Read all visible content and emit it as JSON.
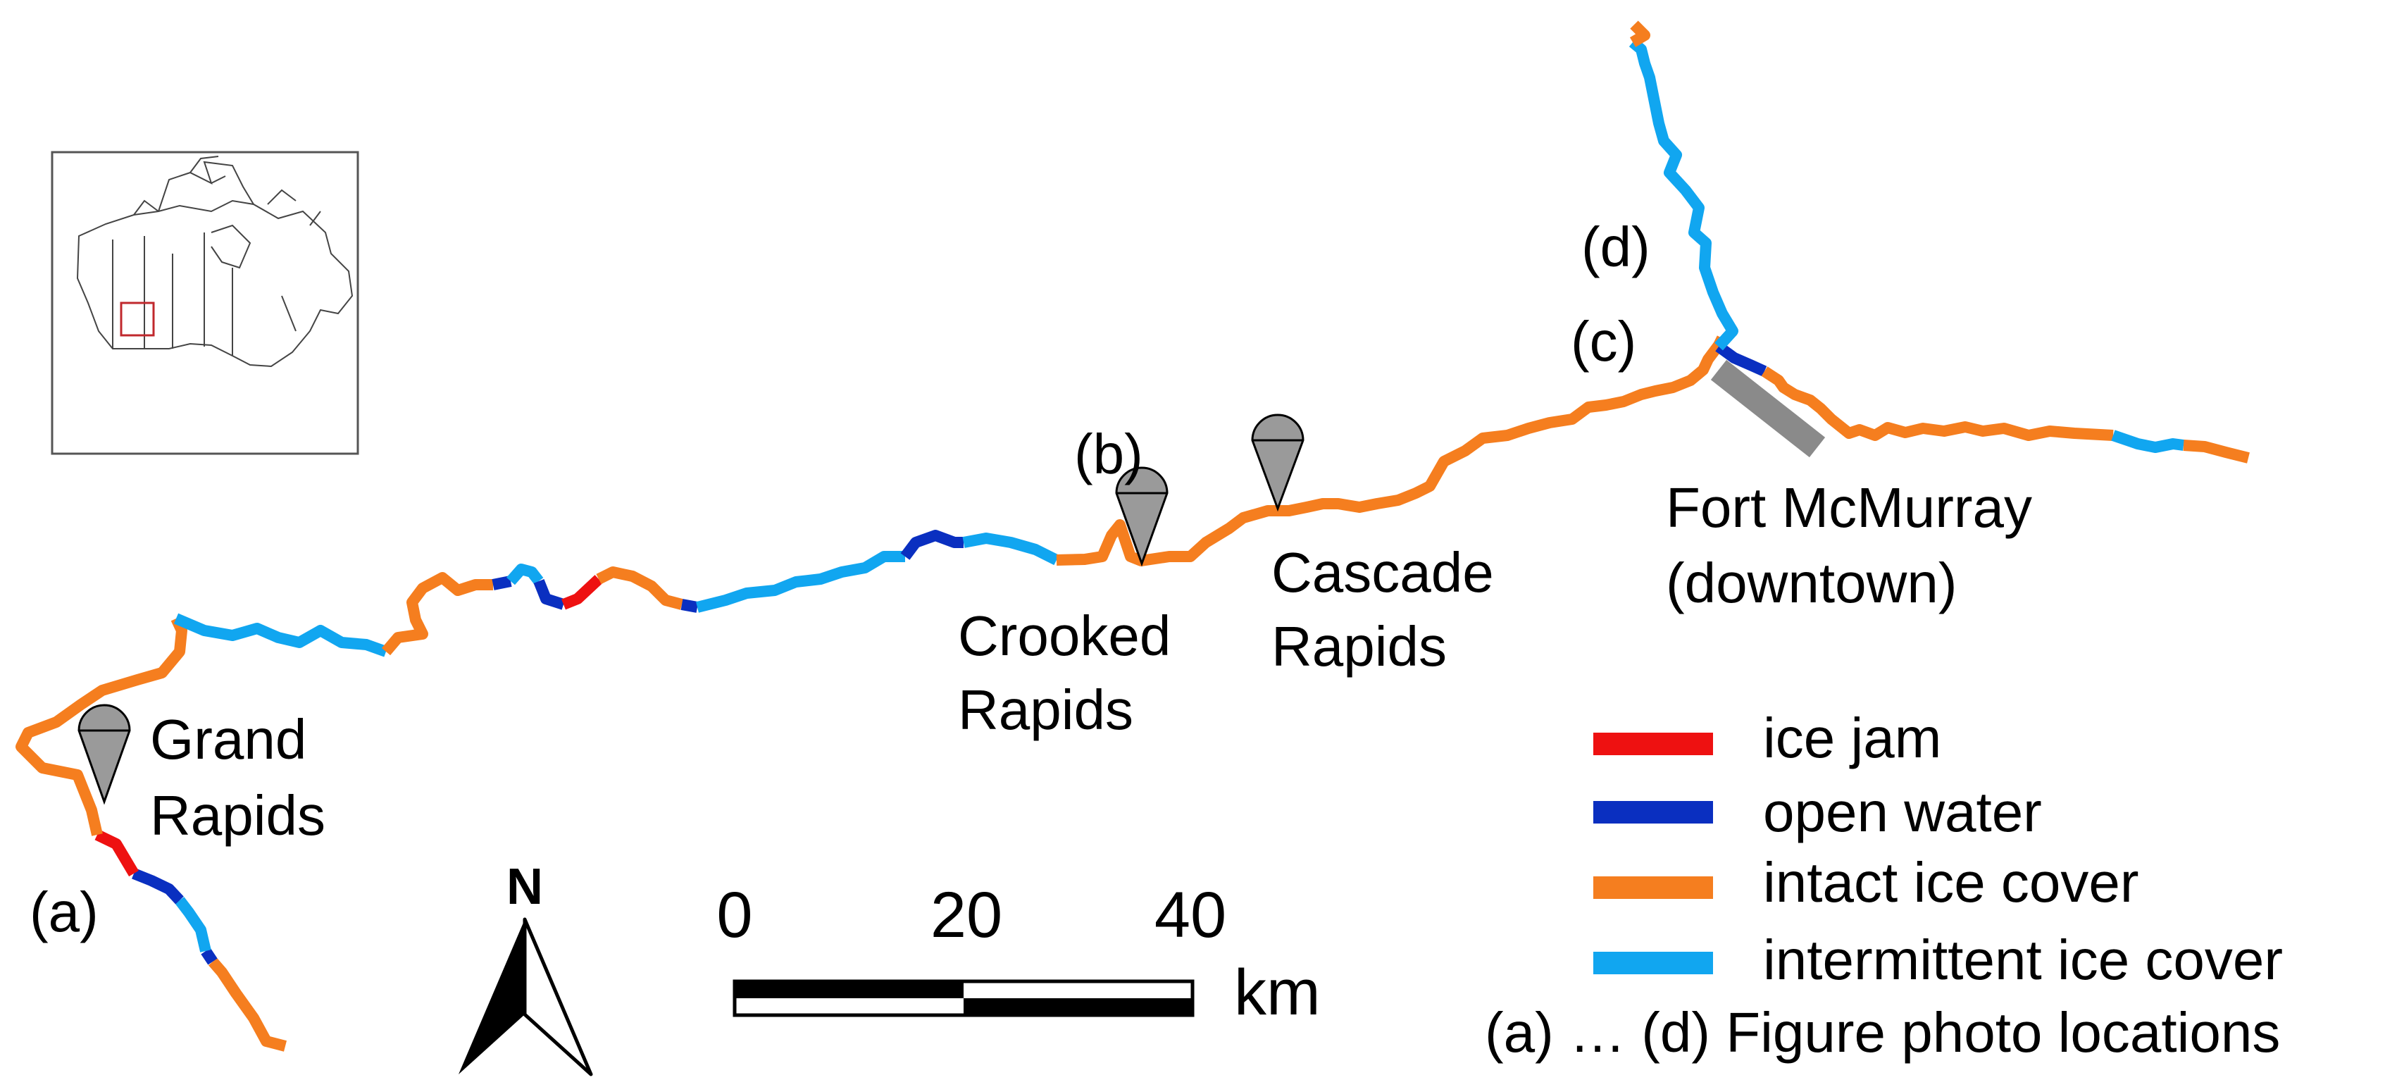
{
  "colors": {
    "ice_jam": "#ee1111",
    "open_water": "#0a2fc0",
    "intact_ice_cover": "#f57e1f",
    "intermittent_ice_cover": "#11a6f0",
    "marker": "#9a9a9a",
    "downtown": "#8a8a8a"
  },
  "photo_labels": {
    "a": "(a)",
    "b": "(b)",
    "c": "(c)",
    "d": "(d)"
  },
  "places": {
    "grand_rapids": [
      "Grand",
      "Rapids"
    ],
    "crooked_rapids": [
      "Crooked",
      "Rapids"
    ],
    "cascade_rapids": [
      "Cascade",
      "Rapids"
    ],
    "fort_mcmurray": [
      "Fort McMurray",
      "(downtown)"
    ]
  },
  "north_arrow": {
    "label": "N"
  },
  "scale_bar": {
    "ticks": [
      "0",
      "20",
      "40"
    ],
    "unit": "km"
  },
  "legend": {
    "items": [
      {
        "label": "ice jam",
        "color_key": "ice_jam"
      },
      {
        "label": "open water",
        "color_key": "open_water"
      },
      {
        "label": "intact ice cover",
        "color_key": "intact_ice_cover"
      },
      {
        "label": "intermittent ice cover",
        "color_key": "intermittent_ice_cover"
      }
    ],
    "photo_note": "(a) … (d) Figure photo locations"
  },
  "inset": {
    "icon": "canada-locator-map-icon"
  }
}
